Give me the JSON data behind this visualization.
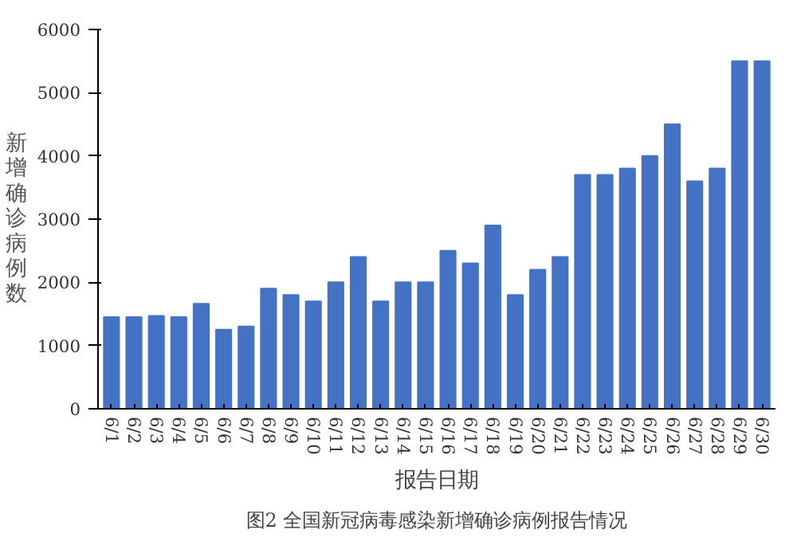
{
  "chart_data": {
    "type": "bar",
    "title": "图2 全国新冠病毒感染新增确诊病例报告情况",
    "xlabel": "报告日期",
    "ylabel": "新增确诊病例数",
    "categories": [
      "6/1",
      "6/2",
      "6/3",
      "6/4",
      "6/5",
      "6/6",
      "6/7",
      "6/8",
      "6/9",
      "6/10",
      "6/11",
      "6/12",
      "6/13",
      "6/14",
      "6/15",
      "6/16",
      "6/17",
      "6/18",
      "6/19",
      "6/20",
      "6/21",
      "6/22",
      "6/23",
      "6/24",
      "6/25",
      "6/26",
      "6/27",
      "6/28",
      "6/29",
      "6/30"
    ],
    "values": [
      1450,
      1450,
      1470,
      1450,
      1660,
      1250,
      1300,
      1900,
      1800,
      1700,
      2000,
      2400,
      1700,
      2000,
      2000,
      2500,
      2300,
      2900,
      1800,
      2200,
      2400,
      3700,
      3700,
      3800,
      4000,
      4500,
      3600,
      3800,
      5500,
      5500
    ],
    "color": "#4472c4",
    "ylim": [
      0,
      6000
    ],
    "yticks": [
      0,
      1000,
      2000,
      3000,
      4000,
      5000,
      6000
    ],
    "grid": false
  }
}
